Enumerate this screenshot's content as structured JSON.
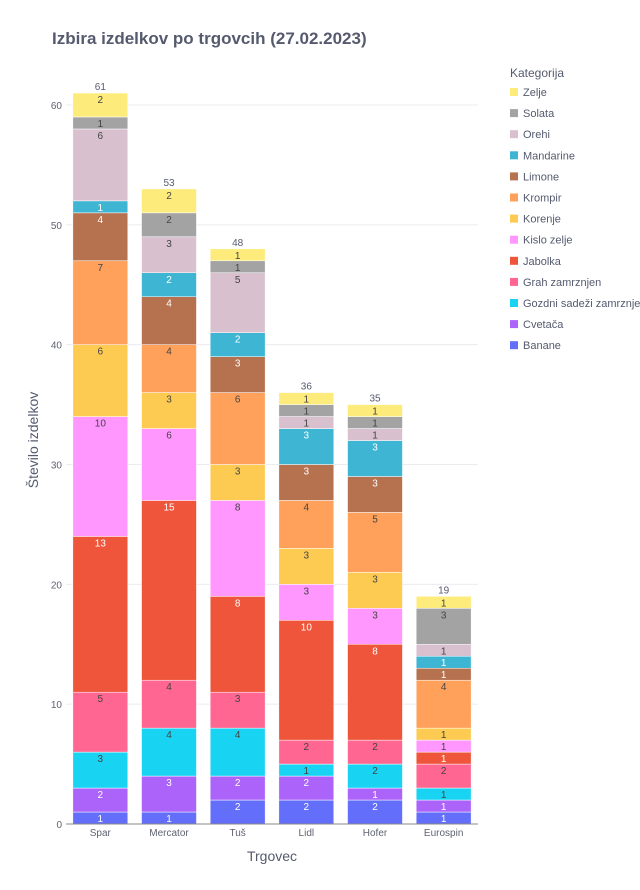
{
  "chart_data": {
    "type": "bar",
    "stacked": true,
    "title": "Izbira izdelkov po trgovcih (27.02.2023)",
    "xlabel": "Trgovec",
    "ylabel": "Število izdelkov",
    "ylim": [
      0,
      64
    ],
    "yticks": [
      0,
      10,
      20,
      30,
      40,
      50,
      60
    ],
    "grid": true,
    "legend_title": "Kategorija",
    "legend_position": "right",
    "categories": [
      "Spar",
      "Mercator",
      "Tuš",
      "Lidl",
      "Hofer",
      "Eurospin"
    ],
    "totals": [
      61,
      53,
      48,
      36,
      35,
      19
    ],
    "series": [
      {
        "name": "Banane",
        "color": "#636efa",
        "values": [
          1,
          1,
          2,
          2,
          2,
          1
        ]
      },
      {
        "name": "Cvetača",
        "color": "#ab63fa",
        "values": [
          2,
          3,
          2,
          2,
          1,
          1
        ]
      },
      {
        "name": "Gozdni sadeži zamrznjeni",
        "color": "#19d3f3",
        "values": [
          3,
          4,
          4,
          1,
          2,
          1
        ]
      },
      {
        "name": "Grah zamrznjen",
        "color": "#ff6692",
        "values": [
          5,
          4,
          3,
          2,
          2,
          2
        ]
      },
      {
        "name": "Jabolka",
        "color": "#ef553b",
        "values": [
          13,
          15,
          8,
          10,
          8,
          1
        ]
      },
      {
        "name": "Kislo zelje",
        "color": "#ff97ff",
        "values": [
          10,
          6,
          8,
          3,
          3,
          1
        ]
      },
      {
        "name": "Korenje",
        "color": "#fecb52",
        "values": [
          6,
          3,
          3,
          3,
          3,
          1
        ]
      },
      {
        "name": "Krompir",
        "color": "#ffa15a",
        "values": [
          7,
          4,
          6,
          4,
          5,
          4
        ]
      },
      {
        "name": "Limone",
        "color": "#b6714f",
        "values": [
          4,
          4,
          3,
          3,
          3,
          1
        ]
      },
      {
        "name": "Mandarine",
        "color": "#3db5d3",
        "values": [
          1,
          2,
          2,
          3,
          3,
          1
        ]
      },
      {
        "name": "Orehi",
        "color": "#d8c0cf",
        "values": [
          6,
          3,
          5,
          1,
          1,
          1
        ]
      },
      {
        "name": "Solata",
        "color": "#a3a3a3",
        "values": [
          1,
          2,
          1,
          1,
          1,
          3
        ]
      },
      {
        "name": "Zelje",
        "color": "#fdec7c",
        "values": [
          2,
          2,
          1,
          1,
          1,
          1
        ]
      }
    ],
    "legend_order": [
      "Zelje",
      "Solata",
      "Orehi",
      "Mandarine",
      "Limone",
      "Krompir",
      "Korenje",
      "Kislo zelje",
      "Jabolka",
      "Grah zamrznjen",
      "Gozdni sadeži zamrznjeni",
      "Cvetača",
      "Banane"
    ]
  }
}
